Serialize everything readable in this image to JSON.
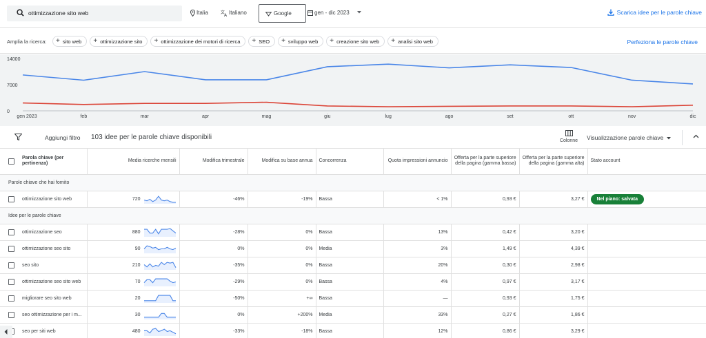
{
  "search": {
    "value": "ottimizzazione sito web"
  },
  "location": "Italia",
  "language": "Italiano",
  "network": "Google",
  "date_range": "gen - dic 2023",
  "download_label": "Scarica idee per le parole chiave",
  "expand": {
    "label": "Amplia la ricerca:",
    "chips": [
      "sito web",
      "ottimizzazione sito",
      "ottimizzazione dei motori di ricerca",
      "SEO",
      "sviluppo web",
      "creazione sito web",
      "analisi sito web"
    ],
    "refine_label": "Perfeziona le parole chiave"
  },
  "chart_data": {
    "type": "line",
    "x": [
      "gen 2023",
      "feb",
      "mar",
      "apr",
      "mag",
      "giu",
      "lug",
      "ago",
      "set",
      "ott",
      "nov",
      "dic"
    ],
    "series": [
      {
        "values": [
          9600,
          8200,
          10500,
          8300,
          8300,
          11800,
          12500,
          11500,
          12300,
          11600,
          8200,
          7200
        ],
        "color": "#4a86e8"
      },
      {
        "values": [
          2100,
          1700,
          2000,
          2000,
          2300,
          1300,
          1100,
          1200,
          1300,
          1300,
          1100,
          1500
        ],
        "color": "#db4437"
      }
    ],
    "y_ticks": [
      "14000",
      "7000",
      "0"
    ],
    "ylim": [
      0,
      14000
    ],
    "grid": false
  },
  "filterbar": {
    "add_filter": "Aggiungi filtro",
    "count_text": "103 idee per le parole chiave disponibili",
    "columns_label": "Colonne",
    "view_label": "Visualizzazione parole chiave"
  },
  "table": {
    "headers": {
      "keyword": "Parola chiave (per pertinenza)",
      "volume": "Media ricerche mensili",
      "quarterly": "Modifica trimestrale",
      "yoy": "Modifica su base annua",
      "competition": "Concorrenza",
      "impr_share": "Quota impressioni annuncio",
      "bid_low": "Offerta per la parte superiore della pagina (gamma bassa)",
      "bid_high": "Offerta per la parte superiore della pagina (gamma alta)",
      "status": "Stato account"
    },
    "section_provided": "Parole chiave che hai fornito",
    "provided": [
      {
        "keyword": "ottimizzazione sito web",
        "volume": "720",
        "quarterly": "-46%",
        "yoy": "-19%",
        "competition": "Bassa",
        "impr_share": "< 1%",
        "bid_low": "0,93 €",
        "bid_high": "3,27 €",
        "status": "Nel piano: salvata",
        "spark": [
          4,
          3,
          5,
          2,
          4,
          9,
          4,
          3,
          4,
          2,
          1,
          1
        ]
      }
    ],
    "section_ideas": "Idee per le parole chiave",
    "ideas": [
      {
        "keyword": "ottimizzazione seo",
        "volume": "880",
        "quarterly": "-28%",
        "yoy": "0%",
        "competition": "Bassa",
        "impr_share": "13%",
        "bid_low": "0,42 €",
        "bid_high": "3,20 €",
        "spark": [
          9,
          9,
          4,
          4,
          9,
          3,
          9,
          9,
          9,
          10,
          7,
          4
        ]
      },
      {
        "keyword": "ottimizzazione seo sito",
        "volume": "90",
        "quarterly": "0%",
        "yoy": "0%",
        "competition": "Media",
        "impr_share": "3%",
        "bid_low": "1,49 €",
        "bid_high": "4,39 €",
        "spark": [
          5,
          9,
          8,
          6,
          7,
          4,
          5,
          5,
          7,
          5,
          4,
          6
        ]
      },
      {
        "keyword": "seo sito",
        "volume": "210",
        "quarterly": "-35%",
        "yoy": "0%",
        "competition": "Bassa",
        "impr_share": "20%",
        "bid_low": "0,30 €",
        "bid_high": "2,98 €",
        "spark": [
          6,
          3,
          7,
          3,
          5,
          4,
          9,
          6,
          9,
          8,
          9,
          2
        ]
      },
      {
        "keyword": "ottimizzazione seo sito web",
        "volume": "70",
        "quarterly": "-29%",
        "yoy": "0%",
        "competition": "Bassa",
        "impr_share": "4%",
        "bid_low": "0,97 €",
        "bid_high": "3,17 €",
        "spark": [
          4,
          8,
          8,
          4,
          9,
          9,
          9,
          9,
          9,
          6,
          4,
          5
        ]
      },
      {
        "keyword": "migliorare seo sito web",
        "volume": "20",
        "quarterly": "-50%",
        "yoy": "+∞",
        "competition": "Bassa",
        "impr_share": "—",
        "bid_low": "0,93 €",
        "bid_high": "1,75 €",
        "spark": [
          2,
          2,
          2,
          2,
          2,
          9,
          9,
          9,
          9,
          9,
          2,
          2
        ]
      },
      {
        "keyword": "seo ottimizzazione per i m...",
        "volume": "30",
        "quarterly": "0%",
        "yoy": "+200%",
        "competition": "Media",
        "impr_share": "33%",
        "bid_low": "0,27 €",
        "bid_high": "1,86 €",
        "spark": [
          2,
          2,
          2,
          2,
          2,
          2,
          7,
          7,
          2,
          2,
          2,
          2
        ]
      },
      {
        "keyword": "seo per siti web",
        "volume": "480",
        "quarterly": "-33%",
        "yoy": "-18%",
        "competition": "Bassa",
        "impr_share": "12%",
        "bid_low": "0,86 €",
        "bid_high": "3,29 €",
        "spark": [
          6,
          6,
          3,
          8,
          9,
          5,
          6,
          8,
          5,
          6,
          4,
          2
        ]
      }
    ]
  }
}
